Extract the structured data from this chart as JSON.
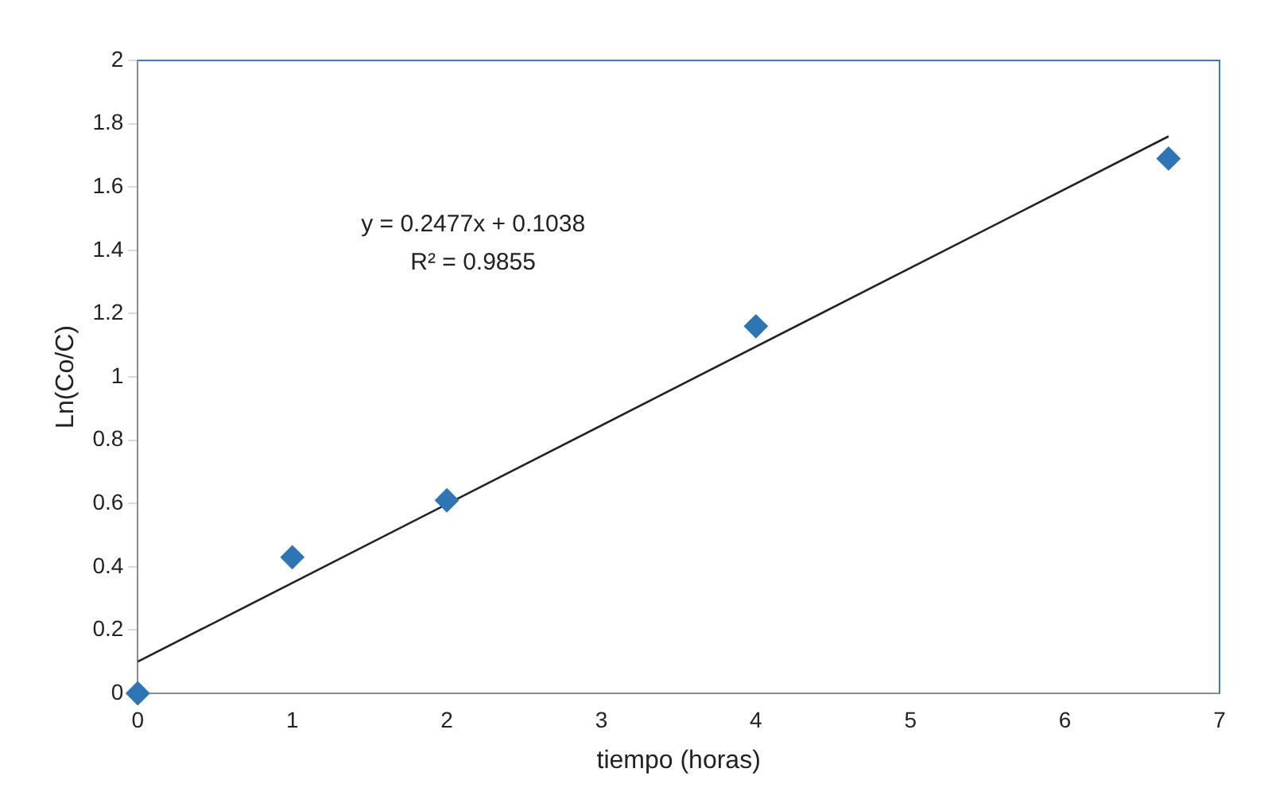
{
  "chart_data": {
    "type": "scatter",
    "xlabel": "tiempo (horas)",
    "ylabel": "Ln(Co/C)",
    "series": [
      {
        "color": "#2e75b6",
        "x": [
          0,
          1,
          2,
          4,
          6.67
        ],
        "values": [
          0,
          0.43,
          0.61,
          1.16,
          1.69
        ]
      },
      {
        "type": "line",
        "color": "#222222",
        "x": [
          0,
          6.67
        ],
        "values": [
          0.1,
          1.76
        ],
        "marker": "none"
      }
    ],
    "annotations": [
      "y = 0.2477x + 0.1038",
      "R² = 0.9855"
    ],
    "xlim": [
      0,
      7
    ],
    "xticks": [
      0,
      1,
      2,
      3,
      4,
      5,
      6,
      7
    ],
    "ylim": [
      0,
      2
    ],
    "yticks": [
      0,
      0.2,
      0.4,
      0.6,
      0.8,
      1,
      1.2,
      1.4,
      1.6,
      1.8,
      2
    ],
    "grid": false,
    "legend": false,
    "marker": "diamond",
    "line_style": "solid"
  }
}
